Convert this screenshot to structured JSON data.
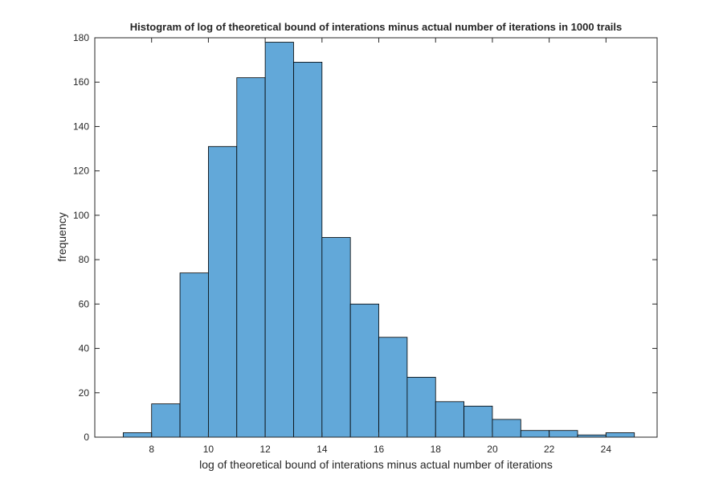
{
  "chart_data": {
    "type": "bar",
    "subtype": "histogram",
    "title": "Histogram of log of theoretical bound of interations minus actual number of iterations in 1000 trails",
    "xlabel": "log of theoretical bound of interations minus actual number of iterations",
    "ylabel": "frequency",
    "xlim": [
      6,
      25.8
    ],
    "ylim": [
      0,
      180
    ],
    "xticks": [
      8,
      10,
      12,
      14,
      16,
      18,
      20,
      22,
      24
    ],
    "yticks": [
      0,
      20,
      40,
      60,
      80,
      100,
      120,
      140,
      160,
      180
    ],
    "bin_edges": [
      7,
      8,
      9,
      10,
      11,
      12,
      13,
      14,
      15,
      16,
      17,
      18,
      19,
      20,
      21,
      22,
      23,
      24,
      25
    ],
    "values": [
      2,
      15,
      74,
      131,
      162,
      178,
      169,
      90,
      60,
      45,
      27,
      16,
      14,
      8,
      3,
      3,
      1,
      2
    ],
    "grid": false,
    "bar_color": "#62a8d9",
    "edge_color": "#000000"
  }
}
